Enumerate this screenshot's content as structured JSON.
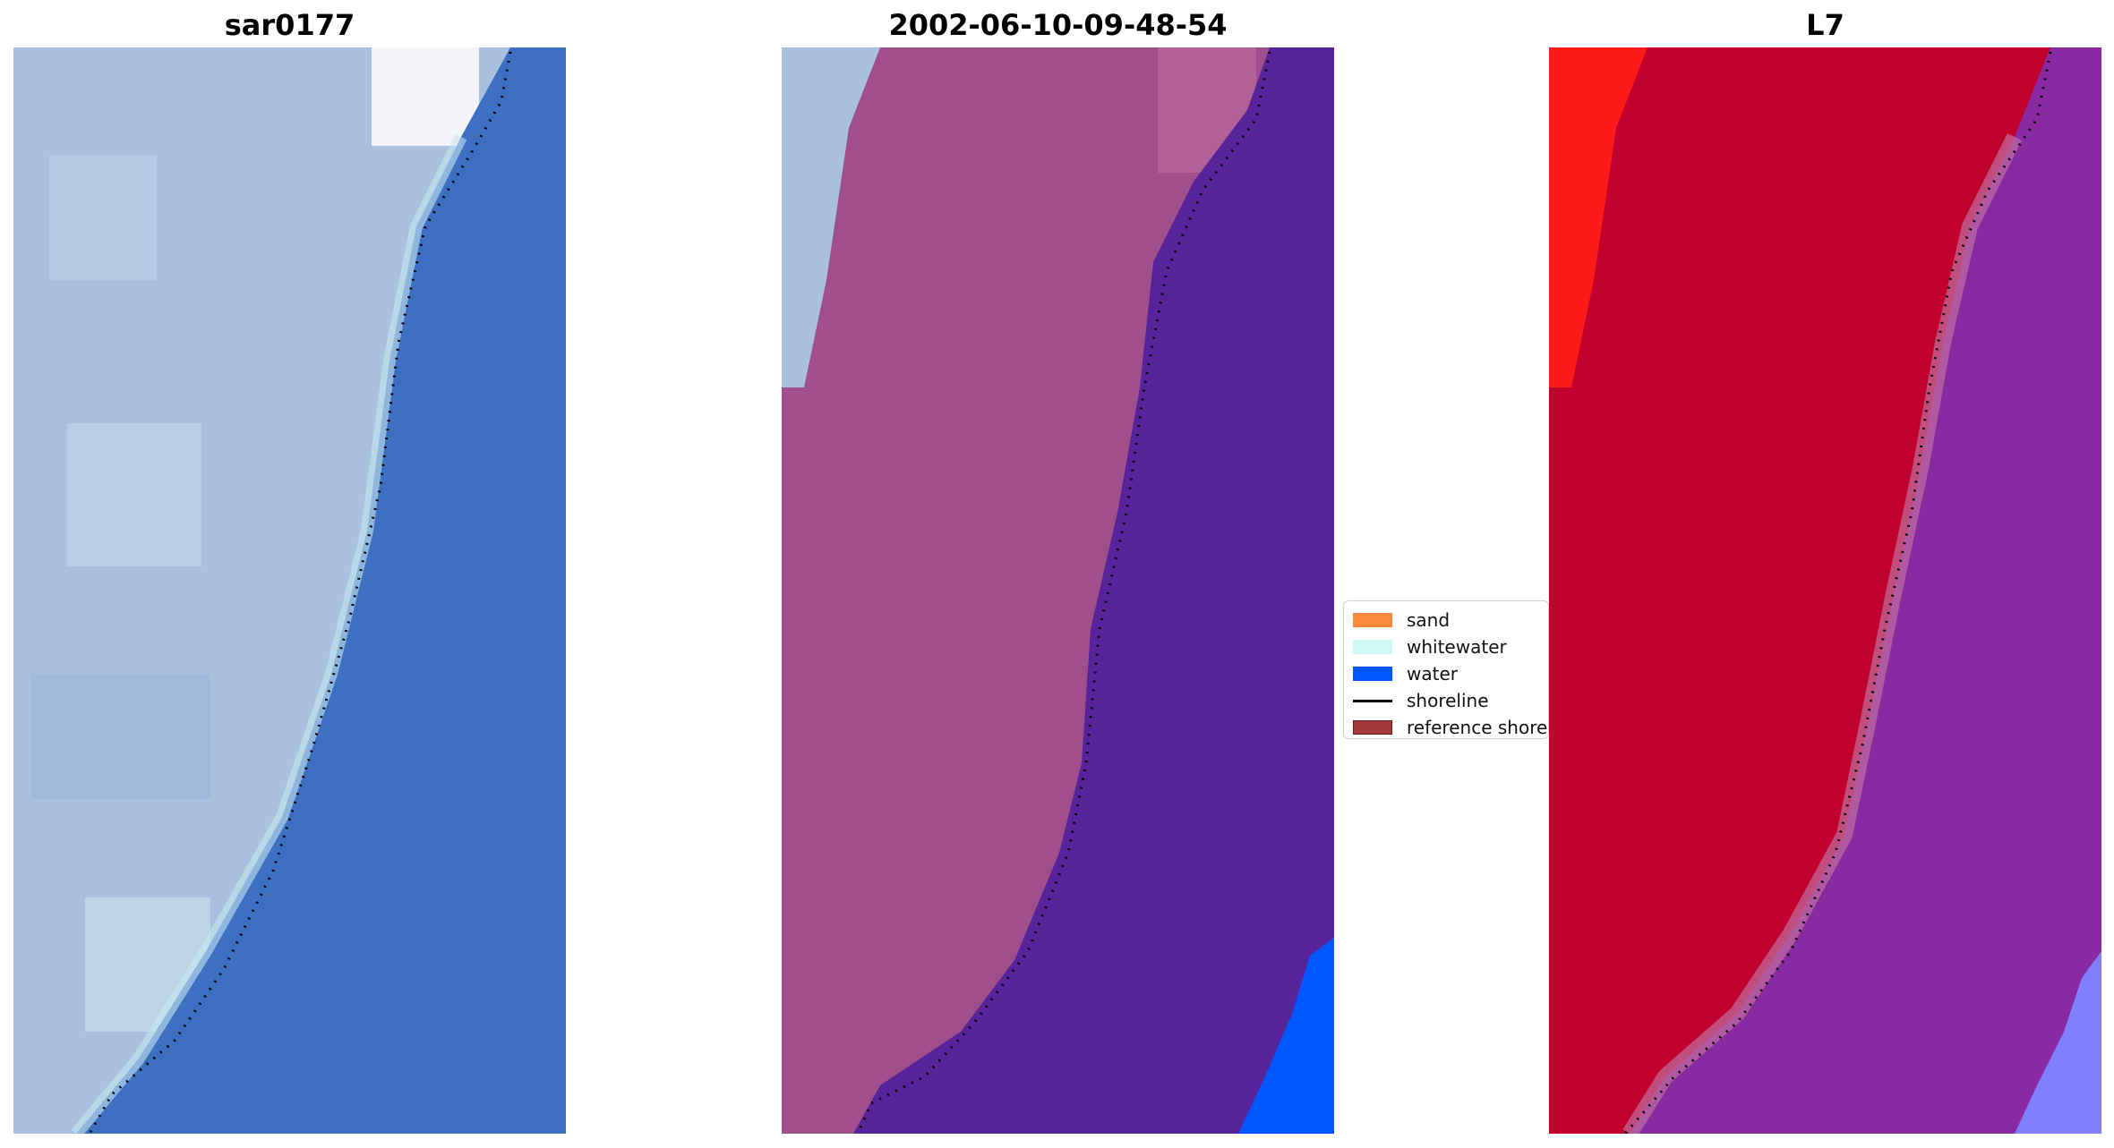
{
  "panels": [
    {
      "title": "sar0177"
    },
    {
      "title": "2002-06-10-09-48-54"
    },
    {
      "title": "L7"
    }
  ],
  "legend": {
    "items": [
      {
        "label": "sand",
        "color": "#f98a3c",
        "kind": "patch"
      },
      {
        "label": "whitewater",
        "color": "#cff8f4",
        "kind": "patch"
      },
      {
        "label": "water",
        "color": "#0057ff",
        "kind": "patch"
      },
      {
        "label": "shoreline",
        "color": "#000000",
        "kind": "line"
      },
      {
        "label": "reference shore",
        "color": "#a23a3a",
        "kind": "patch"
      }
    ]
  },
  "colors": {
    "rgb_land": "#a9c1df",
    "rgb_water": "#3d6fc2",
    "class_land": "#a04e8c",
    "class_water": "#57239a",
    "class_water_bright": "#0057ff",
    "index_land": "#c2002e",
    "index_water": "#8a2aa3",
    "index_bright_red": "#ff1a1a",
    "index_light_blue": "#7f7fff"
  }
}
